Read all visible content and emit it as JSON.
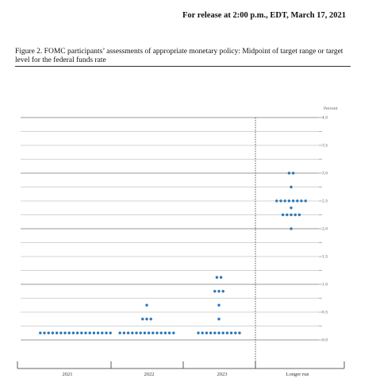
{
  "header": {
    "release_line": "For release at 2:00 p.m., EDT, March 17, 2021",
    "caption": "Figure 2.  FOMC participants’ assessments of appropriate monetary policy:  Midpoint of target range or target level for the federal funds rate"
  },
  "chart_data": {
    "type": "scatter",
    "title": "",
    "ylabel": "Percent",
    "categories": [
      "2021",
      "2022",
      "2023",
      "Longer run"
    ],
    "ylim": [
      0.0,
      4.0
    ],
    "yticks": [
      "4.0",
      "3.5",
      "3.0",
      "2.5",
      "2.0",
      "1.5",
      "1.0",
      "0.5",
      "0.0"
    ],
    "dot_color": "#2e78b7",
    "dots": {
      "2021": [
        {
          "y": 0.125,
          "count": 18
        }
      ],
      "2022": [
        {
          "y": 0.125,
          "count": 14
        },
        {
          "y": 0.375,
          "count": 3
        },
        {
          "y": 0.625,
          "count": 1
        }
      ],
      "2023": [
        {
          "y": 0.125,
          "count": 11
        },
        {
          "y": 0.375,
          "count": 1
        },
        {
          "y": 0.625,
          "count": 1
        },
        {
          "y": 0.875,
          "count": 3
        },
        {
          "y": 1.125,
          "count": 2
        }
      ],
      "Longer run": [
        {
          "y": 2.0,
          "count": 1
        },
        {
          "y": 2.25,
          "count": 5
        },
        {
          "y": 2.375,
          "count": 1
        },
        {
          "y": 2.5,
          "count": 8
        },
        {
          "y": 2.75,
          "count": 1
        },
        {
          "y": 3.0,
          "count": 2
        }
      ]
    }
  }
}
